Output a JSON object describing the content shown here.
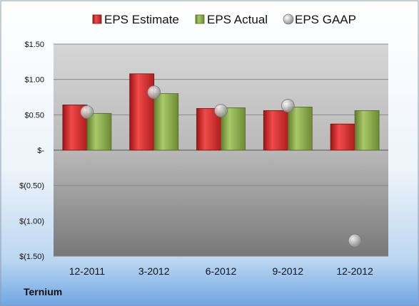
{
  "company": "Ternium",
  "chart_data": {
    "type": "bar",
    "categories": [
      "12-2011",
      "3-2012",
      "6-2012",
      "9-2012",
      "12-2012"
    ],
    "series": [
      {
        "name": "EPS Estimate",
        "type": "bar",
        "color": "#d42a2a",
        "values": [
          0.64,
          1.08,
          0.59,
          0.56,
          0.37
        ]
      },
      {
        "name": "EPS Actual",
        "type": "bar",
        "color": "#8fb04a",
        "values": [
          0.52,
          0.8,
          0.6,
          0.61,
          0.56
        ]
      },
      {
        "name": "EPS GAAP",
        "type": "scatter",
        "color": "#b8b8b8",
        "values": [
          0.54,
          0.82,
          0.56,
          0.63,
          -1.28
        ]
      }
    ],
    "ylim": [
      -1.5,
      1.5
    ],
    "yticks": [
      {
        "value": 1.5,
        "label": "$1.50"
      },
      {
        "value": 1.0,
        "label": "$1.00"
      },
      {
        "value": 0.5,
        "label": "$0.50"
      },
      {
        "value": 0,
        "label": "$-"
      },
      {
        "value": -0.5,
        "label": "$(0.50)"
      },
      {
        "value": -1.0,
        "label": "$(1.00)"
      },
      {
        "value": -1.5,
        "label": "$(1.50)"
      }
    ],
    "grid": true,
    "legend_position": "top"
  }
}
